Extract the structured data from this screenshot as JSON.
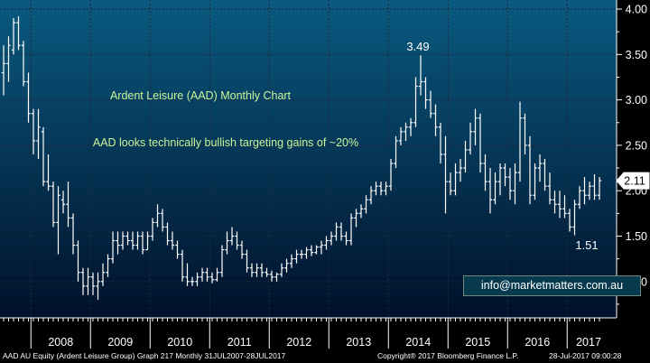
{
  "chart_data": {
    "type": "ohlc",
    "title": "Ardent Leisure (AAD) Monthly Chart",
    "subtitle": "AAD looks technically bullish targeting gains of ~20%",
    "annotations": [
      {
        "text": "3.49",
        "x": "2014-07",
        "y": 3.49
      },
      {
        "text": "1.51",
        "x": "2017-02",
        "y": 1.51
      }
    ],
    "last_price": "2.11",
    "y_axis": {
      "ticks": [
        "4.00",
        "3.50",
        "3.00",
        "2.50",
        "2.00",
        "1.50",
        "1.00"
      ],
      "ylim": [
        0.6,
        4.1
      ],
      "side": "right"
    },
    "x_axis": {
      "labels": [
        "2008",
        "2009",
        "2010",
        "2011",
        "2012",
        "2013",
        "2014",
        "2015",
        "2016",
        "2017"
      ],
      "start": "2007-07",
      "end": "2017-07"
    },
    "colors": {
      "background": "#000000",
      "plot_gradient_top": "#0a5a80",
      "plot_gradient_bottom": "#00102a",
      "bars": "#ffffff",
      "title_text": "#c8f59a",
      "annotation_text": "#ffffff",
      "axis_text": "#ffffff"
    },
    "series": [
      {
        "values": [
          {
            "x": "2007-07",
            "o": 3.3,
            "h": 3.6,
            "l": 3.05,
            "c": 3.4
          },
          {
            "x": "2007-08",
            "o": 3.4,
            "h": 3.7,
            "l": 3.2,
            "c": 3.6
          },
          {
            "x": "2007-09",
            "o": 3.55,
            "h": 3.9,
            "l": 3.5,
            "c": 3.85
          },
          {
            "x": "2007-10",
            "o": 3.85,
            "h": 3.92,
            "l": 3.55,
            "c": 3.6
          },
          {
            "x": "2007-11",
            "o": 3.6,
            "h": 3.65,
            "l": 3.15,
            "c": 3.2
          },
          {
            "x": "2007-12",
            "o": 3.2,
            "h": 3.3,
            "l": 2.75,
            "c": 2.85
          },
          {
            "x": "2008-01",
            "o": 2.85,
            "h": 2.9,
            "l": 2.4,
            "c": 2.55
          },
          {
            "x": "2008-02",
            "o": 2.55,
            "h": 2.9,
            "l": 2.35,
            "c": 2.7
          },
          {
            "x": "2008-03",
            "o": 2.65,
            "h": 2.7,
            "l": 2.05,
            "c": 2.1
          },
          {
            "x": "2008-04",
            "o": 2.1,
            "h": 2.4,
            "l": 2.0,
            "c": 2.05
          },
          {
            "x": "2008-05",
            "o": 2.05,
            "h": 2.1,
            "l": 1.6,
            "c": 1.65
          },
          {
            "x": "2008-06",
            "o": 1.65,
            "h": 2.05,
            "l": 1.3,
            "c": 1.95
          },
          {
            "x": "2008-07",
            "o": 1.9,
            "h": 2.0,
            "l": 1.75,
            "c": 1.85
          },
          {
            "x": "2008-08",
            "o": 1.85,
            "h": 2.1,
            "l": 1.6,
            "c": 1.7
          },
          {
            "x": "2008-09",
            "o": 1.7,
            "h": 1.75,
            "l": 1.3,
            "c": 1.4
          },
          {
            "x": "2008-10",
            "o": 1.4,
            "h": 1.45,
            "l": 1.0,
            "c": 1.1
          },
          {
            "x": "2008-11",
            "o": 1.1,
            "h": 1.15,
            "l": 0.85,
            "c": 0.95
          },
          {
            "x": "2008-12",
            "o": 0.95,
            "h": 1.15,
            "l": 0.85,
            "c": 1.05
          },
          {
            "x": "2009-01",
            "o": 1.05,
            "h": 1.1,
            "l": 0.85,
            "c": 0.95
          },
          {
            "x": "2009-02",
            "o": 0.95,
            "h": 1.1,
            "l": 0.8,
            "c": 1.0
          },
          {
            "x": "2009-03",
            "o": 1.0,
            "h": 1.2,
            "l": 0.95,
            "c": 1.1
          },
          {
            "x": "2009-04",
            "o": 1.1,
            "h": 1.3,
            "l": 1.05,
            "c": 1.25
          },
          {
            "x": "2009-05",
            "o": 1.25,
            "h": 1.55,
            "l": 1.2,
            "c": 1.45
          },
          {
            "x": "2009-06",
            "o": 1.45,
            "h": 1.55,
            "l": 1.3,
            "c": 1.4
          },
          {
            "x": "2009-07",
            "o": 1.4,
            "h": 1.55,
            "l": 1.35,
            "c": 1.5
          },
          {
            "x": "2009-08",
            "o": 1.5,
            "h": 1.55,
            "l": 1.4,
            "c": 1.45
          },
          {
            "x": "2009-09",
            "o": 1.45,
            "h": 1.55,
            "l": 1.35,
            "c": 1.4
          },
          {
            "x": "2009-10",
            "o": 1.4,
            "h": 1.55,
            "l": 1.35,
            "c": 1.5
          },
          {
            "x": "2009-11",
            "o": 1.5,
            "h": 1.55,
            "l": 1.3,
            "c": 1.35
          },
          {
            "x": "2009-12",
            "o": 1.35,
            "h": 1.55,
            "l": 1.35,
            "c": 1.5
          },
          {
            "x": "2010-01",
            "o": 1.5,
            "h": 1.7,
            "l": 1.45,
            "c": 1.65
          },
          {
            "x": "2010-02",
            "o": 1.65,
            "h": 1.85,
            "l": 1.6,
            "c": 1.75
          },
          {
            "x": "2010-03",
            "o": 1.75,
            "h": 1.8,
            "l": 1.55,
            "c": 1.6
          },
          {
            "x": "2010-04",
            "o": 1.6,
            "h": 1.65,
            "l": 1.4,
            "c": 1.45
          },
          {
            "x": "2010-05",
            "o": 1.45,
            "h": 1.55,
            "l": 1.35,
            "c": 1.4
          },
          {
            "x": "2010-06",
            "o": 1.4,
            "h": 1.45,
            "l": 1.25,
            "c": 1.3
          },
          {
            "x": "2010-07",
            "o": 1.3,
            "h": 1.35,
            "l": 1.0,
            "c": 1.05
          },
          {
            "x": "2010-08",
            "o": 1.05,
            "h": 1.2,
            "l": 0.95,
            "c": 1.0
          },
          {
            "x": "2010-09",
            "o": 1.0,
            "h": 1.05,
            "l": 0.95,
            "c": 1.0
          },
          {
            "x": "2010-10",
            "o": 1.0,
            "h": 1.1,
            "l": 0.95,
            "c": 1.05
          },
          {
            "x": "2010-11",
            "o": 1.05,
            "h": 1.15,
            "l": 1.0,
            "c": 1.1
          },
          {
            "x": "2010-12",
            "o": 1.1,
            "h": 1.15,
            "l": 1.0,
            "c": 1.05
          },
          {
            "x": "2011-01",
            "o": 1.05,
            "h": 1.1,
            "l": 0.98,
            "c": 1.02
          },
          {
            "x": "2011-02",
            "o": 1.02,
            "h": 1.15,
            "l": 1.0,
            "c": 1.1
          },
          {
            "x": "2011-03",
            "o": 1.1,
            "h": 1.4,
            "l": 1.05,
            "c": 1.35
          },
          {
            "x": "2011-04",
            "o": 1.35,
            "h": 1.55,
            "l": 1.3,
            "c": 1.45
          },
          {
            "x": "2011-05",
            "o": 1.45,
            "h": 1.6,
            "l": 1.4,
            "c": 1.5
          },
          {
            "x": "2011-06",
            "o": 1.5,
            "h": 1.55,
            "l": 1.35,
            "c": 1.4
          },
          {
            "x": "2011-07",
            "o": 1.4,
            "h": 1.45,
            "l": 1.25,
            "c": 1.3
          },
          {
            "x": "2011-08",
            "o": 1.3,
            "h": 1.35,
            "l": 1.1,
            "c": 1.15
          },
          {
            "x": "2011-09",
            "o": 1.15,
            "h": 1.2,
            "l": 1.05,
            "c": 1.1
          },
          {
            "x": "2011-10",
            "o": 1.1,
            "h": 1.2,
            "l": 1.05,
            "c": 1.15
          },
          {
            "x": "2011-11",
            "o": 1.15,
            "h": 1.2,
            "l": 1.05,
            "c": 1.1
          },
          {
            "x": "2011-12",
            "o": 1.1,
            "h": 1.15,
            "l": 1.05,
            "c": 1.08
          },
          {
            "x": "2012-01",
            "o": 1.08,
            "h": 1.12,
            "l": 1.0,
            "c": 1.05
          },
          {
            "x": "2012-02",
            "o": 1.05,
            "h": 1.1,
            "l": 1.0,
            "c": 1.08
          },
          {
            "x": "2012-03",
            "o": 1.08,
            "h": 1.2,
            "l": 1.05,
            "c": 1.15
          },
          {
            "x": "2012-04",
            "o": 1.15,
            "h": 1.25,
            "l": 1.1,
            "c": 1.2
          },
          {
            "x": "2012-05",
            "o": 1.2,
            "h": 1.3,
            "l": 1.15,
            "c": 1.25
          },
          {
            "x": "2012-06",
            "o": 1.25,
            "h": 1.35,
            "l": 1.2,
            "c": 1.3
          },
          {
            "x": "2012-07",
            "o": 1.3,
            "h": 1.35,
            "l": 1.25,
            "c": 1.3
          },
          {
            "x": "2012-08",
            "o": 1.3,
            "h": 1.38,
            "l": 1.25,
            "c": 1.35
          },
          {
            "x": "2012-09",
            "o": 1.35,
            "h": 1.4,
            "l": 1.28,
            "c": 1.32
          },
          {
            "x": "2012-10",
            "o": 1.32,
            "h": 1.4,
            "l": 1.3,
            "c": 1.38
          },
          {
            "x": "2012-11",
            "o": 1.38,
            "h": 1.45,
            "l": 1.3,
            "c": 1.4
          },
          {
            "x": "2012-12",
            "o": 1.4,
            "h": 1.5,
            "l": 1.35,
            "c": 1.45
          },
          {
            "x": "2013-01",
            "o": 1.45,
            "h": 1.55,
            "l": 1.4,
            "c": 1.5
          },
          {
            "x": "2013-02",
            "o": 1.5,
            "h": 1.65,
            "l": 1.45,
            "c": 1.6
          },
          {
            "x": "2013-03",
            "o": 1.6,
            "h": 1.65,
            "l": 1.45,
            "c": 1.5
          },
          {
            "x": "2013-04",
            "o": 1.5,
            "h": 1.55,
            "l": 1.4,
            "c": 1.45
          },
          {
            "x": "2013-05",
            "o": 1.45,
            "h": 1.75,
            "l": 1.4,
            "c": 1.7
          },
          {
            "x": "2013-06",
            "o": 1.7,
            "h": 1.8,
            "l": 1.6,
            "c": 1.75
          },
          {
            "x": "2013-07",
            "o": 1.75,
            "h": 1.85,
            "l": 1.7,
            "c": 1.8
          },
          {
            "x": "2013-08",
            "o": 1.8,
            "h": 1.95,
            "l": 1.75,
            "c": 1.9
          },
          {
            "x": "2013-09",
            "o": 1.9,
            "h": 2.05,
            "l": 1.85,
            "c": 2.0
          },
          {
            "x": "2013-10",
            "o": 2.0,
            "h": 2.1,
            "l": 1.95,
            "c": 2.05
          },
          {
            "x": "2013-11",
            "o": 2.05,
            "h": 2.1,
            "l": 1.95,
            "c": 2.0
          },
          {
            "x": "2013-12",
            "o": 2.0,
            "h": 2.1,
            "l": 1.95,
            "c": 2.05
          },
          {
            "x": "2014-01",
            "o": 2.05,
            "h": 2.35,
            "l": 2.0,
            "c": 2.3
          },
          {
            "x": "2014-02",
            "o": 2.3,
            "h": 2.6,
            "l": 2.25,
            "c": 2.55
          },
          {
            "x": "2014-03",
            "o": 2.55,
            "h": 2.7,
            "l": 2.5,
            "c": 2.65
          },
          {
            "x": "2014-04",
            "o": 2.65,
            "h": 2.75,
            "l": 2.55,
            "c": 2.7
          },
          {
            "x": "2014-05",
            "o": 2.7,
            "h": 2.8,
            "l": 2.6,
            "c": 2.75
          },
          {
            "x": "2014-06",
            "o": 2.75,
            "h": 3.25,
            "l": 2.7,
            "c": 3.15
          },
          {
            "x": "2014-07",
            "o": 3.15,
            "h": 3.49,
            "l": 3.05,
            "c": 3.2
          },
          {
            "x": "2014-08",
            "o": 3.2,
            "h": 3.25,
            "l": 2.9,
            "c": 3.0
          },
          {
            "x": "2014-09",
            "o": 3.0,
            "h": 3.1,
            "l": 2.8,
            "c": 2.85
          },
          {
            "x": "2014-10",
            "o": 2.85,
            "h": 2.95,
            "l": 2.6,
            "c": 2.7
          },
          {
            "x": "2014-11",
            "o": 2.7,
            "h": 2.75,
            "l": 2.3,
            "c": 2.4
          },
          {
            "x": "2014-12",
            "o": 2.4,
            "h": 2.6,
            "l": 1.75,
            "c": 2.1
          },
          {
            "x": "2015-01",
            "o": 2.1,
            "h": 2.2,
            "l": 1.95,
            "c": 2.0
          },
          {
            "x": "2015-02",
            "o": 2.0,
            "h": 2.3,
            "l": 1.95,
            "c": 2.2
          },
          {
            "x": "2015-03",
            "o": 2.2,
            "h": 2.35,
            "l": 2.1,
            "c": 2.25
          },
          {
            "x": "2015-04",
            "o": 2.25,
            "h": 2.55,
            "l": 2.2,
            "c": 2.45
          },
          {
            "x": "2015-05",
            "o": 2.45,
            "h": 2.75,
            "l": 2.4,
            "c": 2.65
          },
          {
            "x": "2015-06",
            "o": 2.65,
            "h": 2.9,
            "l": 2.5,
            "c": 2.8
          },
          {
            "x": "2015-07",
            "o": 2.8,
            "h": 2.85,
            "l": 2.2,
            "c": 2.3
          },
          {
            "x": "2015-08",
            "o": 2.3,
            "h": 2.4,
            "l": 2.0,
            "c": 2.1
          },
          {
            "x": "2015-09",
            "o": 2.1,
            "h": 2.25,
            "l": 1.75,
            "c": 1.9
          },
          {
            "x": "2015-10",
            "o": 1.9,
            "h": 2.2,
            "l": 1.85,
            "c": 2.1
          },
          {
            "x": "2015-11",
            "o": 2.1,
            "h": 2.3,
            "l": 1.95,
            "c": 2.25
          },
          {
            "x": "2015-12",
            "o": 2.25,
            "h": 2.3,
            "l": 2.05,
            "c": 2.15
          },
          {
            "x": "2016-01",
            "o": 2.15,
            "h": 2.25,
            "l": 1.9,
            "c": 2.0
          },
          {
            "x": "2016-02",
            "o": 2.0,
            "h": 2.3,
            "l": 1.85,
            "c": 2.2
          },
          {
            "x": "2016-03",
            "o": 2.2,
            "h": 2.98,
            "l": 2.1,
            "c": 2.8
          },
          {
            "x": "2016-04",
            "o": 2.8,
            "h": 2.85,
            "l": 2.4,
            "c": 2.5
          },
          {
            "x": "2016-05",
            "o": 2.5,
            "h": 2.6,
            "l": 1.85,
            "c": 1.95
          },
          {
            "x": "2016-06",
            "o": 1.95,
            "h": 2.3,
            "l": 1.9,
            "c": 2.25
          },
          {
            "x": "2016-07",
            "o": 2.25,
            "h": 2.4,
            "l": 2.1,
            "c": 2.3
          },
          {
            "x": "2016-08",
            "o": 2.3,
            "h": 2.35,
            "l": 2.0,
            "c": 2.05
          },
          {
            "x": "2016-09",
            "o": 2.05,
            "h": 2.2,
            "l": 1.85,
            "c": 1.9
          },
          {
            "x": "2016-10",
            "o": 1.9,
            "h": 2.0,
            "l": 1.75,
            "c": 1.85
          },
          {
            "x": "2016-11",
            "o": 1.85,
            "h": 2.0,
            "l": 1.7,
            "c": 1.8
          },
          {
            "x": "2016-12",
            "o": 1.8,
            "h": 1.95,
            "l": 1.7,
            "c": 1.75
          },
          {
            "x": "2017-01",
            "o": 1.75,
            "h": 1.8,
            "l": 1.55,
            "c": 1.6
          },
          {
            "x": "2017-02",
            "o": 1.6,
            "h": 1.9,
            "l": 1.51,
            "c": 1.85
          },
          {
            "x": "2017-03",
            "o": 1.85,
            "h": 2.05,
            "l": 1.8,
            "c": 2.0
          },
          {
            "x": "2017-04",
            "o": 2.0,
            "h": 2.15,
            "l": 1.85,
            "c": 1.95
          },
          {
            "x": "2017-05",
            "o": 1.95,
            "h": 2.1,
            "l": 1.9,
            "c": 2.05
          },
          {
            "x": "2017-06",
            "o": 2.05,
            "h": 2.18,
            "l": 1.9,
            "c": 1.95
          },
          {
            "x": "2017-07",
            "o": 1.95,
            "h": 2.15,
            "l": 1.9,
            "c": 2.11
          }
        ]
      }
    ]
  },
  "email_box": {
    "text": "info@marketmatters.com.au"
  },
  "footer": {
    "left": "AAD AU Equity (Ardent Leisure Group) Graph 217  Monthly 31JUL2007-28JUL2017",
    "center": "Copyright® 2017 Bloomberg Finance L.P.",
    "right": "28-Jul-2017 09:00:28"
  }
}
